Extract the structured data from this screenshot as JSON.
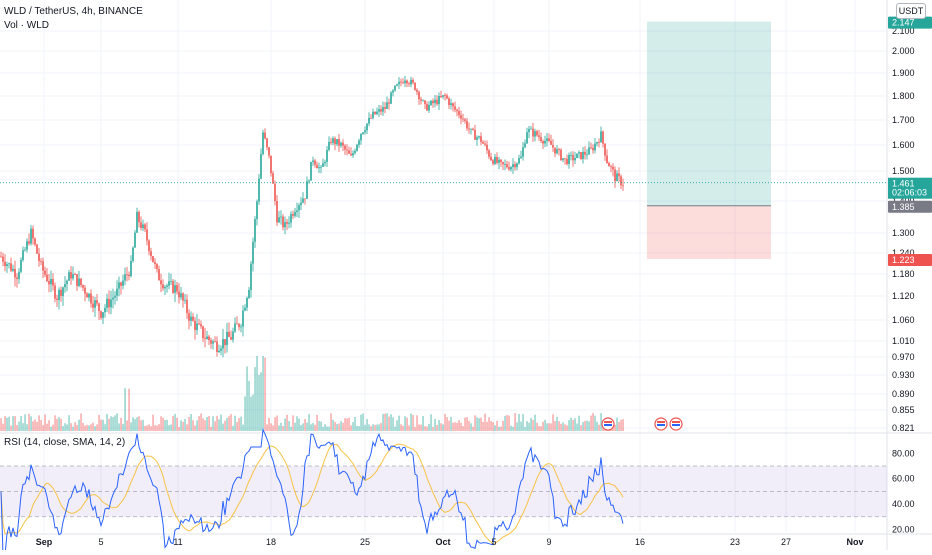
{
  "header": {
    "symbol_title": "WLD / TetherUS, 4h, BINANCE",
    "volume_label": "Vol · WLD",
    "currency_button": "USDT"
  },
  "rsi": {
    "legend": "RSI (14, close, SMA, 14, 2)"
  },
  "price_scale": {
    "ticks": [
      "2.100",
      "2.000",
      "1.900",
      "1.800",
      "1.700",
      "1.600",
      "1.500",
      "1.400",
      "1.300",
      "1.240",
      "1.180",
      "1.120",
      "1.060",
      "1.010",
      "0.970",
      "0.930",
      "0.890",
      "0.855",
      "0.821"
    ],
    "top_label": "2.147",
    "current_price": "1.461",
    "countdown": "02:06:03",
    "entry_label": "1.385",
    "stop_label": "1.223"
  },
  "rsi_scale": {
    "ticks": [
      "80.00",
      "60.00",
      "40.00",
      "20.00"
    ]
  },
  "time_axis": {
    "ticks": [
      "Sep",
      "5",
      "11",
      "18",
      "25",
      "Oct",
      "5",
      "9",
      "16",
      "23",
      "27",
      "Nov"
    ]
  },
  "colors": {
    "up": "#26a69a",
    "down": "#ef5350",
    "target_zone": "#26a69a",
    "stop_zone": "#ef5350",
    "rsi_line": "#7e57c2",
    "rsi_band": "#7e57c2",
    "rsi_ma": "#f7c245",
    "rsi_line_blue": "#2962ff"
  },
  "icons": [
    "economic-event-flag-icon",
    "us-flag-icon"
  ],
  "chart_data": {
    "type": "candlestick",
    "title": "WLD / TetherUS, 4h, BINANCE",
    "y_range": [
      0.821,
      2.147
    ],
    "anchors": [
      [
        0,
        1.23
      ],
      [
        8,
        1.18
      ],
      [
        15,
        1.3
      ],
      [
        20,
        1.2
      ],
      [
        28,
        1.12
      ],
      [
        35,
        1.18
      ],
      [
        40,
        1.15
      ],
      [
        50,
        1.08
      ],
      [
        58,
        1.13
      ],
      [
        65,
        1.2
      ],
      [
        68,
        1.35
      ],
      [
        72,
        1.3
      ],
      [
        78,
        1.18
      ],
      [
        82,
        1.15
      ],
      [
        88,
        1.14
      ],
      [
        95,
        1.06
      ],
      [
        102,
        1.02
      ],
      [
        108,
        1.0
      ],
      [
        115,
        1.02
      ],
      [
        120,
        1.06
      ],
      [
        124,
        1.15
      ],
      [
        128,
        1.4
      ],
      [
        131,
        1.65
      ],
      [
        134,
        1.55
      ],
      [
        138,
        1.35
      ],
      [
        142,
        1.32
      ],
      [
        147,
        1.38
      ],
      [
        152,
        1.42
      ],
      [
        156,
        1.55
      ],
      [
        160,
        1.5
      ],
      [
        165,
        1.62
      ],
      [
        170,
        1.6
      ],
      [
        175,
        1.55
      ],
      [
        180,
        1.65
      ],
      [
        186,
        1.72
      ],
      [
        192,
        1.75
      ],
      [
        197,
        1.83
      ],
      [
        202,
        1.88
      ],
      [
        207,
        1.84
      ],
      [
        212,
        1.75
      ],
      [
        218,
        1.78
      ],
      [
        222,
        1.8
      ],
      [
        226,
        1.75
      ],
      [
        230,
        1.72
      ],
      [
        235,
        1.65
      ],
      [
        240,
        1.62
      ],
      [
        245,
        1.55
      ],
      [
        250,
        1.52
      ],
      [
        255,
        1.52
      ],
      [
        260,
        1.55
      ],
      [
        263,
        1.66
      ],
      [
        268,
        1.64
      ],
      [
        275,
        1.6
      ],
      [
        282,
        1.54
      ],
      [
        290,
        1.56
      ],
      [
        295,
        1.58
      ],
      [
        300,
        1.64
      ],
      [
        303,
        1.54
      ],
      [
        307,
        1.48
      ],
      [
        311,
        1.46
      ]
    ],
    "current_price": 1.461,
    "position": {
      "target": 2.147,
      "entry": 1.385,
      "stop": 1.223
    },
    "rsi_levels": [
      70,
      50,
      30
    ]
  }
}
